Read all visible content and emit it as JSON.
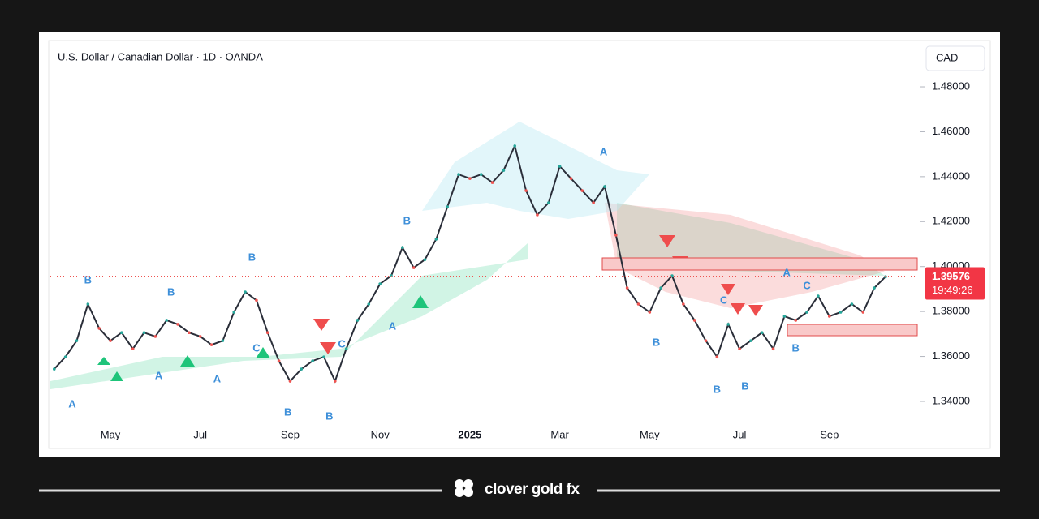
{
  "chart_data": {
    "type": "line",
    "title": "U.S. Dollar / Canadian Dollar · 1D · OANDA",
    "currency": "CAD",
    "color": "#2a2e39",
    "categories": [
      null,
      null,
      null,
      null,
      null,
      "May",
      null,
      null,
      null,
      null,
      null,
      null,
      null,
      "Jul",
      null,
      null,
      null,
      null,
      null,
      null,
      null,
      "Sep",
      null,
      null,
      null,
      null,
      null,
      null,
      null,
      "Nov",
      null,
      null,
      null,
      null,
      null,
      null,
      null,
      "2025",
      null,
      null,
      null,
      null,
      null,
      null,
      null,
      "Mar",
      null,
      null,
      null,
      null,
      null,
      null,
      null,
      "May",
      null,
      null,
      null,
      null,
      null,
      null,
      null,
      "Jul",
      null,
      null,
      null,
      null,
      null,
      null,
      null,
      "Sep",
      null,
      null,
      null,
      null,
      null
    ],
    "values": [
      1.3544,
      1.3598,
      1.367,
      1.3833,
      1.3725,
      1.367,
      1.3706,
      1.3634,
      1.3706,
      1.3689,
      1.3761,
      1.3743,
      1.3706,
      1.3689,
      1.3652,
      1.367,
      1.3797,
      1.3887,
      1.385,
      1.3706,
      1.358,
      1.349,
      1.3544,
      1.358,
      1.3598,
      1.349,
      1.3634,
      1.3761,
      1.3833,
      1.3923,
      1.3959,
      1.4085,
      1.3995,
      1.4031,
      1.4122,
      1.4266,
      1.441,
      1.4392,
      1.441,
      1.4374,
      1.4428,
      1.4537,
      1.4338,
      1.423,
      1.4284,
      1.4446,
      1.4392,
      1.4338,
      1.4284,
      1.4356,
      1.414,
      1.3905,
      1.3833,
      1.3797,
      1.3905,
      1.3959,
      1.3833,
      1.3761,
      1.367,
      1.3598,
      1.3743,
      1.3634,
      1.367,
      1.3706,
      1.3634,
      1.3779,
      1.3761,
      1.3797,
      1.3869,
      1.3779,
      1.3797,
      1.3833,
      1.3797,
      1.3905,
      1.3955
    ],
    "ylim": [
      1.33,
      1.5
    ],
    "yticks": [
      {
        "value": 1.34,
        "label": "1.34000"
      },
      {
        "value": 1.36,
        "label": "1.36000"
      },
      {
        "value": 1.38,
        "label": "1.38000"
      },
      {
        "value": 1.4,
        "label": "1.40000"
      },
      {
        "value": 1.42,
        "label": "1.42000"
      },
      {
        "value": 1.44,
        "label": "1.44000"
      },
      {
        "value": 1.46,
        "label": "1.46000"
      },
      {
        "value": 1.48,
        "label": "1.48000"
      }
    ],
    "last_price": {
      "value": 1.39576,
      "label": "1.39576"
    },
    "countdown": "19:49:26",
    "annotations": [
      {
        "label": "A",
        "x": 1.6,
        "y": 1.3385
      },
      {
        "label": "B",
        "x": 3,
        "y": 1.3938
      },
      {
        "label": "A",
        "x": 9.3,
        "y": 1.3512
      },
      {
        "label": "B",
        "x": 10.4,
        "y": 1.3883
      },
      {
        "label": "A",
        "x": 14.5,
        "y": 1.3497
      },
      {
        "label": "B",
        "x": 17.6,
        "y": 1.4039
      },
      {
        "label": "C",
        "x": 18,
        "y": 1.3634
      },
      {
        "label": "B",
        "x": 20.8,
        "y": 1.3349
      },
      {
        "label": "B",
        "x": 24.5,
        "y": 1.3331
      },
      {
        "label": "C",
        "x": 25.6,
        "y": 1.3652
      },
      {
        "label": "A",
        "x": 30.1,
        "y": 1.3732
      },
      {
        "label": "B",
        "x": 31.4,
        "y": 1.4201
      },
      {
        "label": "A",
        "x": 48.9,
        "y": 1.4508
      },
      {
        "label": "B",
        "x": 53.6,
        "y": 1.366
      },
      {
        "label": "B",
        "x": 59,
        "y": 1.345
      },
      {
        "label": "C",
        "x": 59.6,
        "y": 1.3847
      },
      {
        "label": "B",
        "x": 61.5,
        "y": 1.3465
      },
      {
        "label": "A",
        "x": 65.2,
        "y": 1.397
      },
      {
        "label": "B",
        "x": 66,
        "y": 1.3634
      },
      {
        "label": "C",
        "x": 67,
        "y": 1.3912
      }
    ]
  },
  "footer": {
    "brand": "clover gold fx"
  }
}
